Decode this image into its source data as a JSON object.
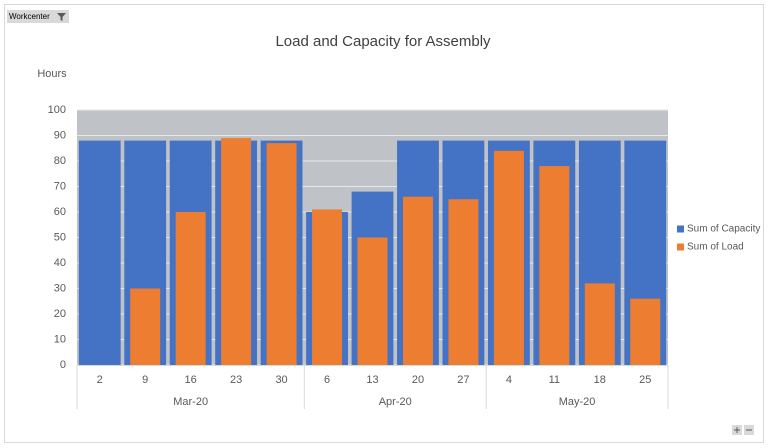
{
  "chart_data": {
    "type": "bar",
    "title": "Load and Capacity for Assembly",
    "y_label": "Hours",
    "field_button": "Workcenter",
    "category_groups": [
      {
        "label": "Mar-20",
        "categories": [
          "2",
          "9",
          "16",
          "23",
          "30"
        ]
      },
      {
        "label": "Apr-20",
        "categories": [
          "6",
          "13",
          "20",
          "27"
        ]
      },
      {
        "label": "May-20",
        "categories": [
          "4",
          "11",
          "18",
          "25"
        ]
      }
    ],
    "series": [
      {
        "name": "Sum of Capacity",
        "color": "#4472c4",
        "values": [
          88,
          88,
          88,
          88,
          88,
          60,
          68,
          88,
          88,
          88,
          88,
          88,
          88
        ]
      },
      {
        "name": "Sum of Load",
        "color": "#ed7d31",
        "values": [
          null,
          30,
          60,
          89,
          87,
          61,
          50,
          66,
          65,
          84,
          78,
          32,
          26
        ]
      }
    ],
    "ylim": [
      0,
      100
    ],
    "yticks": [
      0,
      10,
      20,
      30,
      40,
      50,
      60,
      70,
      80,
      90,
      100
    ],
    "grid": true,
    "legend": "right",
    "plot_background": "#bfc3c7"
  }
}
